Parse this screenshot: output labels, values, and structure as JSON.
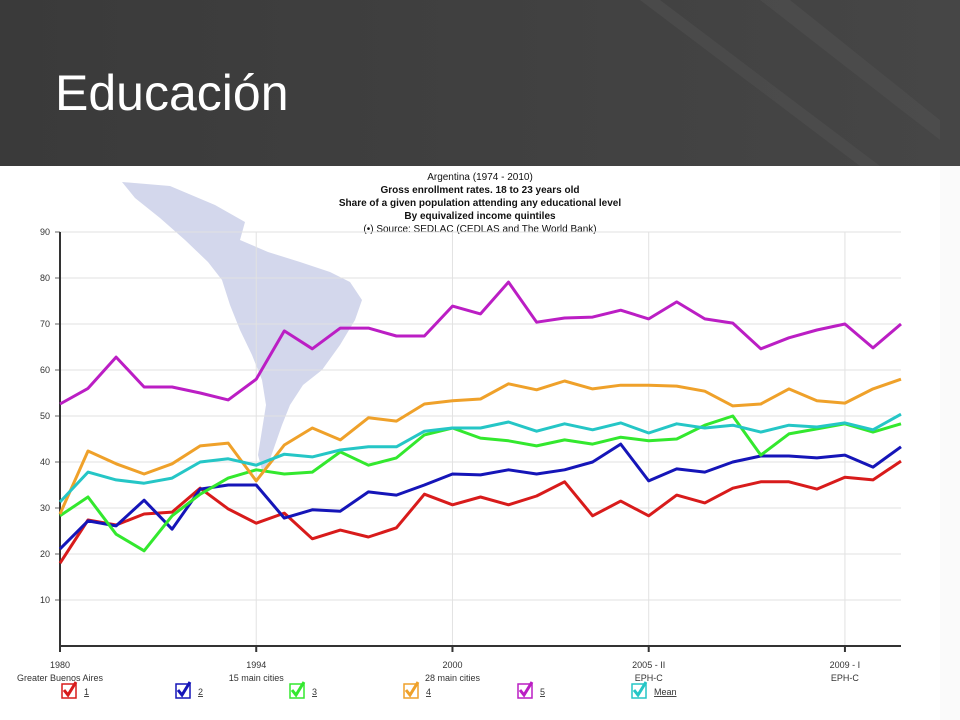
{
  "slide_title": "Educación",
  "chart_data": {
    "type": "line",
    "title": "Argentina (1974 - 2010)",
    "subtitles": [
      "Gross enrollment rates. 18 to 23 years old",
      "Share of a given population attending any educational level",
      "By equivalized income quintiles"
    ],
    "source": "(•) Source: SEDLAC (CEDLAS and The World Bank)",
    "categories": [
      "1980",
      null,
      null,
      null,
      null,
      null,
      null,
      "1994",
      null,
      null,
      null,
      null,
      null,
      null,
      "2000",
      null,
      null,
      null,
      null,
      null,
      null,
      "2005 - II",
      null,
      null,
      null,
      null,
      null,
      null,
      "2009 - I",
      null,
      null
    ],
    "category_notes": [
      "Greater Buenos Aires",
      null,
      null,
      null,
      null,
      null,
      null,
      "15 main cities",
      null,
      null,
      null,
      null,
      null,
      null,
      "28 main cities",
      null,
      null,
      null,
      null,
      null,
      null,
      "EPH-C",
      null,
      null,
      null,
      null,
      null,
      null,
      "EPH-C",
      null,
      null
    ],
    "ylim": [
      0,
      90
    ],
    "yticks": [
      10,
      20,
      30,
      40,
      50,
      60,
      70,
      80,
      90
    ],
    "grid": true,
    "legend": "bottom",
    "series": [
      {
        "name": "1",
        "color": "#d81b1b",
        "values": [
          18,
          27.4,
          26.3,
          28.7,
          29.1,
          34.3,
          29.8,
          26.7,
          28.9,
          23.3,
          25.2,
          23.7,
          25.7,
          33,
          30.7,
          32.4,
          30.7,
          32.6,
          35.7,
          28.3,
          31.5,
          28.3,
          32.8,
          31.1,
          34.3,
          35.7,
          35.7,
          34.1,
          36.7,
          36.1,
          40.2
        ]
      },
      {
        "name": "2",
        "color": "#1515b8",
        "values": [
          21.1,
          27.2,
          26.1,
          31.7,
          25.4,
          34.1,
          35,
          35,
          27.8,
          29.6,
          29.3,
          33.5,
          32.8,
          35,
          37.4,
          37.2,
          38.3,
          37.4,
          38.3,
          40,
          43.9,
          35.9,
          38.5,
          37.8,
          40,
          41.3,
          41.3,
          40.9,
          41.5,
          38.9,
          43.3
        ]
      },
      {
        "name": "3",
        "color": "#33e82e",
        "values": [
          28.3,
          32.4,
          24.3,
          20.7,
          28.3,
          33,
          36.5,
          38.3,
          37.4,
          37.8,
          42.2,
          39.3,
          40.9,
          45.9,
          47.4,
          45.2,
          44.6,
          43.5,
          44.8,
          43.9,
          45.4,
          44.6,
          45,
          48,
          50,
          41.5,
          46.1,
          47.2,
          48.3,
          46.5,
          48.3
        ]
      },
      {
        "name": "4",
        "color": "#efa12a",
        "values": [
          28.7,
          42.4,
          39.6,
          37.4,
          39.6,
          43.5,
          44.1,
          35.9,
          43.7,
          47.4,
          44.8,
          49.6,
          48.9,
          52.6,
          53.3,
          53.7,
          57,
          55.7,
          57.6,
          55.9,
          56.7,
          56.7,
          56.5,
          55.4,
          52.2,
          52.6,
          55.9,
          53.3,
          52.8,
          55.9,
          58
        ]
      },
      {
        "name": "5",
        "color": "#bb1ec4",
        "values": [
          52.6,
          56,
          62.8,
          56.3,
          56.3,
          55,
          53.5,
          58,
          68.5,
          64.6,
          69.1,
          69.1,
          67.4,
          67.4,
          73.9,
          72.2,
          79.1,
          70.4,
          71.3,
          71.5,
          73,
          71.1,
          74.8,
          71.1,
          70.2,
          64.6,
          67,
          68.7,
          70,
          64.8,
          70
        ]
      },
      {
        "name": "Mean",
        "color": "#25c6c6",
        "values": [
          31.3,
          37.8,
          36.1,
          35.4,
          36.5,
          40,
          40.7,
          39.3,
          41.7,
          41.1,
          42.6,
          43.3,
          43.3,
          46.7,
          47.4,
          47.4,
          48.7,
          46.7,
          48.3,
          47,
          48.5,
          46.3,
          48.3,
          47.4,
          48,
          46.5,
          48,
          47.6,
          48.5,
          47,
          50.4
        ]
      }
    ]
  }
}
